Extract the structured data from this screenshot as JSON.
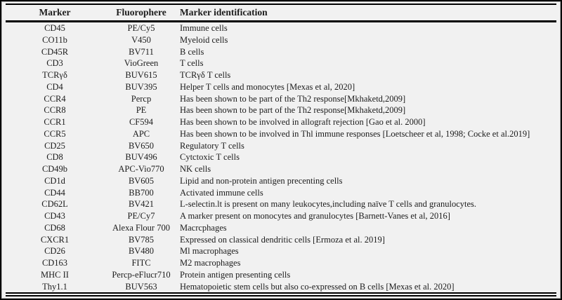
{
  "table": {
    "columns": [
      "Marker",
      "Fluorophere",
      "Marker identification"
    ],
    "rows": [
      [
        "CD45",
        "PE/Cy5",
        "Immune cells"
      ],
      [
        "CO11b",
        "V450",
        "Myeloid cells"
      ],
      [
        "CD45R",
        "BV711",
        "B cells"
      ],
      [
        "CD3",
        "VioGreen",
        "T cells"
      ],
      [
        "TCRγδ",
        "BUV615",
        "TCRγδ T cells"
      ],
      [
        "CD4",
        "BUV395",
        "Helper T cells and monocytes [Mexas et al, 2020]"
      ],
      [
        "CCR4",
        "Percp",
        "Has been shown to be part of the Th2 response[Mkhaketd,2009]"
      ],
      [
        "CCR8",
        "PE",
        "Has been shown to be part of the Th2 response[Mkhaketd,2009]"
      ],
      [
        "CCR1",
        "CF594",
        "Has been shown to be involved in allograft rejection [Gao et al. 2000]"
      ],
      [
        "CCR5",
        "APC",
        "Has been shown to be involved in Thl immune responses [Loetscheer et al, 1998; Cocke et al.2019]"
      ],
      [
        "CD25",
        "BV650",
        "Regulatory T cells"
      ],
      [
        "CD8",
        "BUV496",
        "Cytctoxic T cells"
      ],
      [
        "CD49b",
        "APC-Vio770",
        "NK cells"
      ],
      [
        "CD1d",
        "BV605",
        "Lipid and non-protein antigen precenting cells"
      ],
      [
        "CD44",
        "BB700",
        "Activated immune cells"
      ],
      [
        "CD62L",
        "BV421",
        "L-selectin.lt is present on many leukocytes,including naïve T cells and granulocytes."
      ],
      [
        "CD43",
        "PE/Cy7",
        "A marker present on monocytes and granulocytes [Barnett-Vanes et al, 2016]"
      ],
      [
        "CD68",
        "Alexa Flour 700",
        "Macrcphages"
      ],
      [
        "CXCR1",
        "BV785",
        "Expressed on classical dendritic cells [Ermoza et al. 2019]"
      ],
      [
        "CD26",
        "BV480",
        "Ml macrophages"
      ],
      [
        "CD163",
        "FITC",
        "M2 macrophages"
      ],
      [
        "MHC II",
        "Percp-eFlucr710",
        "Protein antigen presenting cells"
      ],
      [
        "Thy1.1",
        "BUV563",
        "Hematopoietic stem cells but also co-expressed on B cells [Mexas et al. 2020]"
      ]
    ]
  },
  "colors": {
    "background": "#f1f1f1",
    "text": "#1c1c1c",
    "rule": "#000000"
  }
}
